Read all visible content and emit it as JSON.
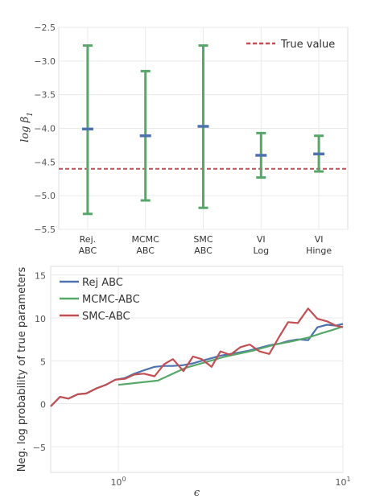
{
  "chart_data": [
    {
      "type": "errorbar",
      "ylabel": "log β1",
      "ylim": [
        -5.5,
        -2.5
      ],
      "yticks": [
        -2.5,
        -3.0,
        -3.5,
        -4.0,
        -4.5,
        -5.0,
        -5.5
      ],
      "yticklabels": [
        "−2.5",
        "−3.0",
        "−3.5",
        "−4.0",
        "−4.5",
        "−5.0",
        "−5.5"
      ],
      "categories": [
        {
          "line1": "Rej.",
          "line2": "ABC"
        },
        {
          "line1": "MCMC",
          "line2": "ABC"
        },
        {
          "line1": "SMC",
          "line2": "ABC"
        },
        {
          "line1": "VI",
          "line2": "Log"
        },
        {
          "line1": "VI",
          "line2": "Hinge"
        }
      ],
      "estimates": [
        -4.01,
        -4.11,
        -3.97,
        -4.4,
        -4.38
      ],
      "lower": [
        -5.27,
        -5.07,
        -5.18,
        -4.73,
        -4.64
      ],
      "upper": [
        -2.77,
        -3.15,
        -2.77,
        -4.07,
        -4.11
      ],
      "true_value": -4.6,
      "legend": {
        "label": "True value",
        "position": "top-right"
      },
      "colors": {
        "bar": "#55a868",
        "estimate": "#4c72b0",
        "true": "#c44e52"
      },
      "grid": true
    },
    {
      "type": "line",
      "xscale": "log",
      "xlim": [
        0.5,
        10
      ],
      "xticks": [
        1,
        10
      ],
      "xticklabels": [
        {
          "base": "10",
          "exp": "0"
        },
        {
          "base": "10",
          "exp": "1"
        }
      ],
      "xlabel": "ϵ",
      "ylabel": "Neg. log probability of true parameters",
      "ylim": [
        -8,
        16
      ],
      "yticks": [
        15,
        10,
        5,
        0,
        -5
      ],
      "yticklabels": [
        "15",
        "10",
        "5",
        "0",
        "−5"
      ],
      "legend_position": "top-left",
      "grid": true,
      "series": [
        {
          "name": "Rej ABC",
          "color": "#4c72b0",
          "x": [
            0.5,
            0.55,
            0.6,
            0.66,
            0.72,
            0.8,
            0.88,
            0.97,
            1.07,
            1.18,
            1.3,
            1.45,
            1.6,
            1.75,
            1.95,
            2.15,
            2.35,
            2.6,
            2.85,
            3.15,
            3.5,
            3.85,
            4.25,
            4.7,
            5.2,
            5.7,
            6.3,
            7.0,
            7.7,
            8.5,
            9.3,
            10.0
          ],
          "y": [
            -0.3,
            0.8,
            0.6,
            1.1,
            1.2,
            1.8,
            2.2,
            2.8,
            3.0,
            3.5,
            3.9,
            4.3,
            4.4,
            4.4,
            4.5,
            4.7,
            5.0,
            5.3,
            5.6,
            5.8,
            6.0,
            6.2,
            6.5,
            6.8,
            7.0,
            7.3,
            7.5,
            7.4,
            8.9,
            9.2,
            9.1,
            9.3
          ]
        },
        {
          "name": "MCMC-ABC",
          "color": "#55a868",
          "x": [
            1.0,
            1.5,
            2.0,
            3.0,
            4.0,
            5.0,
            6.0,
            7.0,
            8.0,
            9.0,
            10.0
          ],
          "y": [
            2.2,
            2.7,
            4.2,
            5.5,
            6.2,
            6.9,
            7.3,
            7.7,
            8.2,
            8.6,
            9.0
          ]
        },
        {
          "name": "SMC-ABC",
          "color": "#c44e52",
          "x": [
            0.5,
            0.55,
            0.6,
            0.66,
            0.72,
            0.8,
            0.88,
            0.97,
            1.07,
            1.18,
            1.3,
            1.45,
            1.6,
            1.75,
            1.95,
            2.15,
            2.35,
            2.6,
            2.85,
            3.15,
            3.5,
            3.85,
            4.25,
            4.7,
            5.2,
            5.7,
            6.3,
            7.0,
            7.7,
            8.5,
            9.3,
            10.0
          ],
          "y": [
            -0.3,
            0.8,
            0.6,
            1.1,
            1.2,
            1.8,
            2.2,
            2.8,
            2.9,
            3.4,
            3.5,
            3.2,
            4.6,
            5.2,
            3.8,
            5.5,
            5.2,
            4.3,
            6.1,
            5.7,
            6.6,
            6.9,
            6.1,
            5.8,
            7.8,
            9.5,
            9.4,
            11.1,
            9.9,
            9.6,
            9.1,
            8.9
          ]
        }
      ]
    }
  ]
}
